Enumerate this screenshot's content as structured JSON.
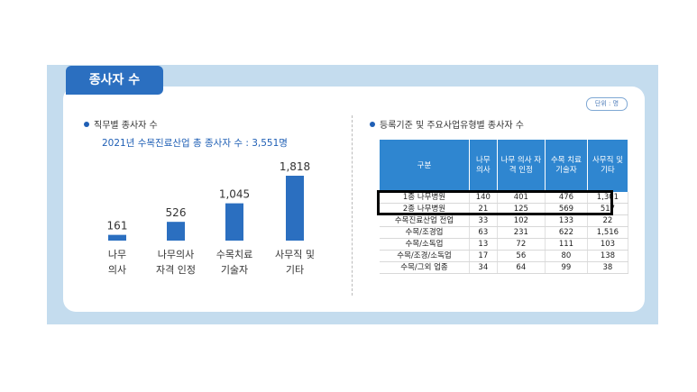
{
  "header": {
    "title": "종사자 수",
    "unit_badge": "단위 : 명"
  },
  "left": {
    "section_title": "직무별 종사자 수",
    "total_line": "2021년 수목진료산업 총 종사자 수 : 3,551명"
  },
  "right": {
    "section_title": "등록기준 및 주요사업유형별 종사자 수"
  },
  "colors": {
    "bar": "#2b6fc0",
    "header": "#2f86d0",
    "accent": "#1f5fb5"
  },
  "chart_data": [
    {
      "type": "bar",
      "categories": [
        [
          "나무",
          "의사"
        ],
        [
          "나무의사",
          "자격 인정"
        ],
        [
          "수목치료",
          "기술자"
        ],
        [
          "사무직 및",
          "기타"
        ]
      ],
      "values": [
        161,
        526,
        1045,
        1818
      ],
      "value_labels": [
        "161",
        "526",
        "1,045",
        "1,818"
      ],
      "ylim": [
        0,
        1818
      ]
    },
    {
      "type": "table",
      "columns": [
        "구분",
        "나무 의사",
        "나무 의사 자격 인정",
        "수목 치료 기술자",
        "사무직 및 기타"
      ],
      "rows": [
        [
          "1종 나무병원",
          "140",
          "401",
          "476",
          "1,301"
        ],
        [
          "2종 나무병원",
          "21",
          "125",
          "569",
          "517"
        ],
        [
          "수목진료산업 전업",
          "33",
          "102",
          "133",
          "22"
        ],
        [
          "수목/조경업",
          "63",
          "231",
          "622",
          "1,516"
        ],
        [
          "수목/소독업",
          "13",
          "72",
          "111",
          "103"
        ],
        [
          "수목/조경/소독업",
          "17",
          "56",
          "80",
          "138"
        ],
        [
          "수목/그외 업종",
          "34",
          "64",
          "99",
          "38"
        ]
      ]
    }
  ]
}
